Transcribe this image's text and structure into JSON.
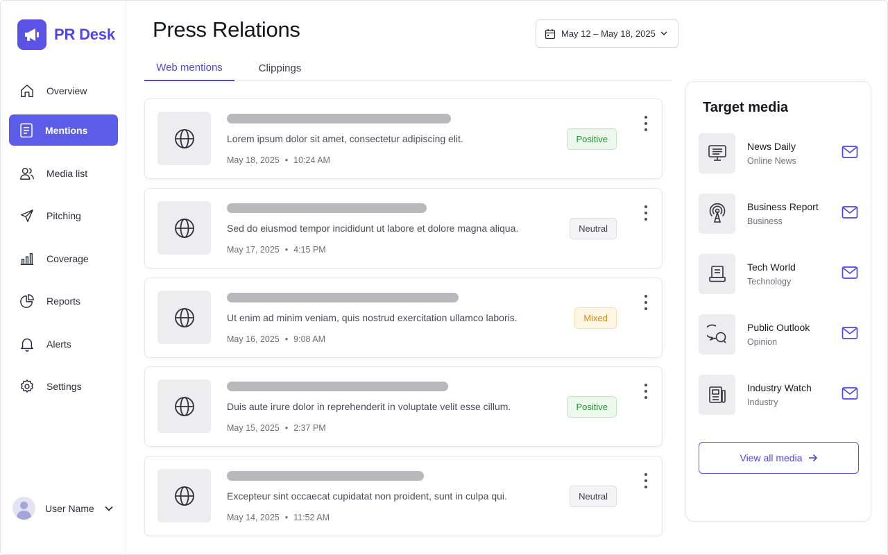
{
  "brand": {
    "name": "PR Desk"
  },
  "colors": {
    "accent": "#5b52e6",
    "positive": "#2f8d3a",
    "neutral": "#3e414c",
    "mixed": "#c88a1a"
  },
  "sidebar": {
    "items": [
      {
        "label": "Overview",
        "icon": "home-icon"
      },
      {
        "label": "Mentions",
        "icon": "document-icon",
        "active": true
      },
      {
        "label": "Media list",
        "icon": "users-icon"
      },
      {
        "label": "Pitching",
        "icon": "send-icon"
      },
      {
        "label": "Coverage",
        "icon": "bar-chart-icon"
      },
      {
        "label": "Reports",
        "icon": "pie-chart-icon"
      },
      {
        "label": "Alerts",
        "icon": "bell-icon"
      },
      {
        "label": "Settings",
        "icon": "gear-icon"
      }
    ],
    "user": {
      "name": "User Name"
    }
  },
  "header": {
    "title": "Press Relations",
    "date_range": "May 12 – May 18, 2025"
  },
  "tabs": [
    {
      "label": "Web mentions",
      "active": true
    },
    {
      "label": "Clippings",
      "active": false
    }
  ],
  "mentions": [
    {
      "summary": "Lorem ipsum dolor sit amet, consectetur adipiscing elit.",
      "date": "May 18, 2025",
      "time": "10:24 AM",
      "sentiment": "Positive",
      "sentiment_key": "positive"
    },
    {
      "summary": "Sed do eiusmod tempor incididunt ut labore et dolore magna aliqua.",
      "date": "May 17, 2025",
      "time": "4:15 PM",
      "sentiment": "Neutral",
      "sentiment_key": "neutral"
    },
    {
      "summary": "Ut enim ad minim veniam, quis nostrud exercitation ullamco laboris.",
      "date": "May 16, 2025",
      "time": "9:08 AM",
      "sentiment": "Mixed",
      "sentiment_key": "mixed"
    },
    {
      "summary": "Duis aute irure dolor in reprehenderit in voluptate velit esse cillum.",
      "date": "May 15, 2025",
      "time": "2:37 PM",
      "sentiment": "Positive",
      "sentiment_key": "positive"
    },
    {
      "summary": "Excepteur sint occaecat cupidatat non proident, sunt in culpa qui.",
      "date": "May 14, 2025",
      "time": "11:52 AM",
      "sentiment": "Neutral",
      "sentiment_key": "neutral"
    }
  ],
  "target_media": {
    "title": "Target media",
    "items": [
      {
        "name": "News Daily",
        "category": "Online News",
        "icon": "monitor-icon"
      },
      {
        "name": "Business Report",
        "category": "Business",
        "icon": "broadcast-icon"
      },
      {
        "name": "Tech World",
        "category": "Technology",
        "icon": "laptop-icon"
      },
      {
        "name": "Public Outlook",
        "category": "Opinion",
        "icon": "chat-icon"
      },
      {
        "name": "Industry Watch",
        "category": "Industry",
        "icon": "newspaper-icon"
      }
    ],
    "view_all_label": "View all media"
  }
}
